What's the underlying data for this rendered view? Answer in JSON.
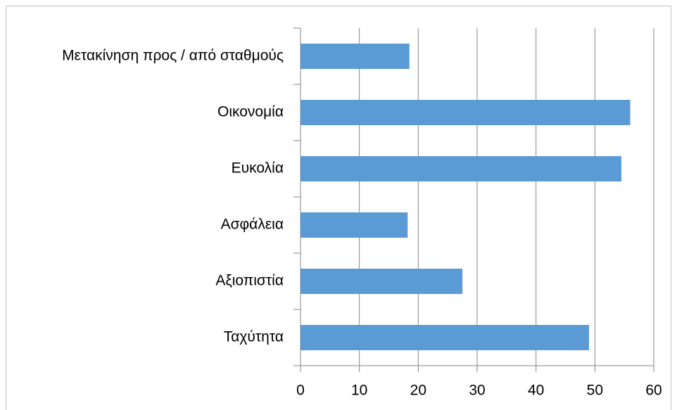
{
  "chart_data": {
    "type": "bar",
    "orientation": "horizontal",
    "categories": [
      "Μετακίνηση προς / από σταθμούς",
      "Οικονομία",
      "Ευκολία",
      "Ασφάλεια",
      "Αξιοπιστία",
      "Ταχύτητα"
    ],
    "values": [
      18.5,
      56,
      54.5,
      18.2,
      27.5,
      49
    ],
    "color": "#5b9bd5",
    "xlim": [
      0,
      60
    ],
    "xticks": [
      0,
      10,
      20,
      30,
      40,
      50,
      60
    ],
    "grid": true
  }
}
